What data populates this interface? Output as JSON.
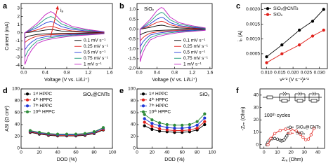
{
  "chart_data": [
    {
      "type": "line",
      "panel_label": "a",
      "annotation": "iₚ",
      "x_label": "Voltage (V vs. Li/Li⁺)",
      "y_label": "Current (mA)",
      "xlim": [
        -0.05,
        1.65
      ],
      "ylim": [
        -4.4,
        3.6
      ],
      "xticks": [
        {
          "value": 0,
          "label": "0.0"
        },
        0.4,
        0.8,
        1.2,
        1.6
      ],
      "yticks": [
        -4,
        -3,
        -2,
        -1,
        0,
        1,
        2,
        3
      ],
      "legend": "lower-right",
      "markers": "none",
      "x": [
        1.5,
        1.2,
        0.9,
        0.6,
        0.4,
        0.25,
        0.15,
        0.08,
        0.02,
        0.02,
        0.1,
        0.25,
        0.4,
        0.5,
        0.55,
        0.7,
        0.9,
        1.2,
        1.5
      ],
      "series": [
        {
          "name": "0.1 mV s⁻¹",
          "color": "#000000",
          "values": [
            -0.02,
            -0.04,
            -0.06,
            -0.1,
            -0.14,
            -0.2,
            -0.32,
            -0.44,
            -0.6,
            0,
            0.06,
            0.18,
            0.34,
            0.4,
            0.38,
            0.22,
            0.12,
            0.06,
            0.02
          ]
        },
        {
          "name": "0.25 mV s⁻¹",
          "color": "#e0201b",
          "values": [
            -0.04,
            -0.08,
            -0.12,
            -0.2,
            -0.28,
            -0.4,
            -0.64,
            -0.88,
            -1.2,
            0,
            0.12,
            0.36,
            0.68,
            0.8,
            0.76,
            0.44,
            0.24,
            0.12,
            0.04
          ]
        },
        {
          "name": "0.5 mV s⁻¹",
          "color": "#2038d8",
          "values": [
            -0.07,
            -0.14,
            -0.21,
            -0.35,
            -0.49,
            -0.7,
            -1.12,
            -1.54,
            -2.1,
            0,
            0.21,
            0.63,
            1.19,
            1.4,
            1.33,
            0.77,
            0.42,
            0.21,
            0.07
          ]
        },
        {
          "name": "0.75 mV s⁻¹",
          "color": "#1f9a7a",
          "values": [
            -0.1,
            -0.2,
            -0.3,
            -0.5,
            -0.7,
            -1.0,
            -1.6,
            -2.2,
            -3.0,
            0,
            0.3,
            0.9,
            1.7,
            2.0,
            1.9,
            1.1,
            0.6,
            0.3,
            0.1
          ]
        },
        {
          "name": "1 mV s⁻¹",
          "color": "#c21fc2",
          "values": [
            -0.13,
            -0.26,
            -0.39,
            -0.65,
            -0.91,
            -1.3,
            -2.08,
            -2.86,
            -3.9,
            0,
            0.39,
            1.17,
            2.21,
            2.6,
            2.47,
            1.43,
            0.78,
            0.39,
            0.13
          ]
        }
      ]
    },
    {
      "type": "line",
      "panel_label": "b",
      "annotation": "SiOₓ",
      "x_label": "Voltage (V vs. Li/Li⁺)",
      "xlim": [
        -0.05,
        1.65
      ],
      "ylim": [
        -2.0,
        1.3
      ],
      "xticks": [
        {
          "value": 0,
          "label": "0.0"
        },
        0.4,
        0.8,
        1.2,
        1.6
      ],
      "yticks": [
        {
          "value": -2,
          "label": "-2.0"
        },
        -1.5,
        {
          "value": -1,
          "label": "-1.0"
        },
        -0.5,
        {
          "value": 0,
          "label": "0.0"
        },
        0.5,
        {
          "value": 1,
          "label": "1.0"
        }
      ],
      "legend": "lower-right",
      "markers": "none",
      "x": [
        1.5,
        1.2,
        0.9,
        0.6,
        0.4,
        0.25,
        0.15,
        0.08,
        0.02,
        0.02,
        0.1,
        0.25,
        0.4,
        0.5,
        0.55,
        0.7,
        0.9,
        1.2,
        1.5
      ],
      "series": [
        {
          "name": "0.1 mV s⁻¹",
          "color": "#000000",
          "values": [
            -0.01,
            -0.02,
            -0.03,
            -0.05,
            -0.07,
            -0.1,
            -0.16,
            -0.22,
            -0.3,
            0,
            0.03,
            0.09,
            0.17,
            0.2,
            0.19,
            0.11,
            0.06,
            0.03,
            0.01
          ]
        },
        {
          "name": "0.25 mV s⁻¹",
          "color": "#e0201b",
          "values": [
            -0.02,
            -0.04,
            -0.06,
            -0.1,
            -0.14,
            -0.2,
            -0.32,
            -0.44,
            -0.6,
            0,
            0.06,
            0.18,
            0.34,
            0.4,
            0.38,
            0.22,
            0.12,
            0.06,
            0.02
          ]
        },
        {
          "name": "0.5 mV s⁻¹",
          "color": "#2038d8",
          "values": [
            -0.03,
            -0.06,
            -0.09,
            -0.15,
            -0.21,
            -0.3,
            -0.48,
            -0.66,
            -0.9,
            0,
            0.09,
            0.27,
            0.51,
            0.6,
            0.57,
            0.33,
            0.18,
            0.09,
            0.03
          ]
        },
        {
          "name": "0.75 mV s⁻¹",
          "color": "#1f9a7a",
          "values": [
            -0.04,
            -0.09,
            -0.13,
            -0.21,
            -0.3,
            -0.43,
            -0.68,
            -0.94,
            -1.28,
            0,
            0.13,
            0.38,
            0.72,
            0.85,
            0.81,
            0.47,
            0.26,
            0.13,
            0.04
          ]
        },
        {
          "name": "1 mV s⁻¹",
          "color": "#c21fc2",
          "values": [
            -0.06,
            -0.11,
            -0.17,
            -0.28,
            -0.39,
            -0.55,
            -0.88,
            -1.21,
            -1.65,
            0,
            0.17,
            0.5,
            0.94,
            1.1,
            1.05,
            0.61,
            0.33,
            0.17,
            0.06
          ]
        }
      ]
    },
    {
      "type": "scatter",
      "panel_label": "c",
      "x_label": "v¹ᐟ² (V s⁻¹)¹ᐟ²",
      "y_label": "iₚ (A)",
      "xlim": [
        0.008,
        0.033
      ],
      "ylim": [
        0,
        0.0022
      ],
      "xticks": [
        {
          "value": 0.01,
          "label": "0.010"
        },
        0.015,
        {
          "value": 0.02,
          "label": "0.020"
        },
        0.025,
        {
          "value": 0.03,
          "label": "0.030"
        }
      ],
      "yticks": [
        0.0005,
        {
          "value": 0.001,
          "label": "0.0010"
        },
        0.0015,
        {
          "value": 0.002,
          "label": "0.0020"
        }
      ],
      "legend": "upper-left",
      "markers": "filled",
      "x": [
        0.01,
        0.0158,
        0.0224,
        0.0274,
        0.0316
      ],
      "series": [
        {
          "name": "SiOₓ@CNTs",
          "color": "#000000",
          "values": [
            0.0004,
            0.0008,
            0.0013,
            0.0016,
            0.002
          ]
        },
        {
          "name": "SiOₓ",
          "color": "#e0201b",
          "values": [
            0.0002,
            0.0005,
            0.0008,
            0.0011,
            0.0013
          ]
        }
      ]
    },
    {
      "type": "line",
      "panel_label": "d",
      "annotation": "SiOₓ@CNTs",
      "x_label": "DOD (%)",
      "y_label": "ASI (Ω cm²)",
      "xlim": [
        0,
        100
      ],
      "ylim": [
        0,
        100
      ],
      "xticks": [
        0,
        20,
        40,
        60,
        80,
        100
      ],
      "yticks": [
        0,
        20,
        40,
        60,
        80,
        100
      ],
      "legend": "upper-left",
      "markers": "filled",
      "x": [
        10,
        20,
        30,
        40,
        50,
        60,
        70,
        80,
        90
      ],
      "series": [
        {
          "name": "1ˢᵗ HPPC",
          "color": "#000000",
          "values": [
            27,
            24,
            22,
            21,
            21,
            21,
            22,
            25,
            31
          ]
        },
        {
          "name": "4ᵗʰ HPPC",
          "color": "#e0201b",
          "values": [
            28,
            25,
            23,
            22,
            22,
            22,
            23,
            26,
            32
          ]
        },
        {
          "name": "7ᵗʰ HPPC",
          "color": "#2038d8",
          "values": [
            29,
            26,
            24,
            23,
            23,
            23,
            24,
            27,
            34
          ]
        },
        {
          "name": "10ᵗʰ HPPC",
          "color": "#2e8b3a",
          "values": [
            30,
            27,
            25,
            24,
            24,
            24,
            25,
            28,
            35
          ]
        }
      ]
    },
    {
      "type": "line",
      "panel_label": "e",
      "annotation": "SiOₓ",
      "x_label": "DOD (%)",
      "xlim": [
        0,
        100
      ],
      "ylim": [
        0,
        100
      ],
      "xticks": [
        0,
        20,
        40,
        60,
        80,
        100
      ],
      "yticks": [
        0,
        20,
        40,
        60,
        80,
        100
      ],
      "legend": "upper-left",
      "markers": "filled",
      "x": [
        10,
        20,
        30,
        40,
        50,
        60,
        70,
        80,
        90
      ],
      "series": [
        {
          "name": "1ˢᵗ HPPC",
          "color": "#000000",
          "values": [
            38,
            32,
            29,
            28,
            27,
            27,
            28,
            31,
            40
          ]
        },
        {
          "name": "4ᵗʰ HPPC",
          "color": "#e0201b",
          "values": [
            44,
            37,
            33,
            31,
            30,
            30,
            31,
            34,
            45
          ]
        },
        {
          "name": "7ᵗʰ HPPC",
          "color": "#2038d8",
          "values": [
            50,
            42,
            38,
            35,
            34,
            34,
            35,
            39,
            51
          ]
        },
        {
          "name": "10ᵗʰ HPPC",
          "color": "#2e8b3a",
          "values": [
            57,
            48,
            43,
            40,
            39,
            39,
            40,
            45,
            58
          ]
        }
      ]
    },
    {
      "type": "scatter",
      "panel_label": "f",
      "annotation": "100ᵗʰ cycles",
      "x_label": "Zᵣₑ (Ohm)",
      "y_label": "-Zᵢₘ (Ohm)",
      "xlim": [
        -3,
        45
      ],
      "ylim": [
        -3,
        45
      ],
      "xticks": [
        0,
        10,
        20,
        30,
        40
      ],
      "yticks": [
        0,
        10,
        20,
        30,
        40
      ],
      "legend": "center",
      "markers": "open",
      "series": [
        {
          "name": "SiOₓ@CNTs",
          "color": "#000000",
          "x": [
            2,
            3,
            4,
            6,
            8,
            10,
            12,
            13,
            14,
            15,
            16,
            17,
            18
          ],
          "values": [
            0,
            2,
            3.5,
            4.8,
            5,
            4.5,
            3.5,
            3,
            3.2,
            4,
            5.5,
            7,
            9
          ]
        },
        {
          "name": "SiOₓ",
          "color": "#e0201b",
          "x": [
            3,
            5,
            8,
            12,
            16,
            20,
            24,
            27,
            29,
            31,
            33,
            35,
            37
          ],
          "values": [
            0,
            5,
            9,
            11.5,
            12.5,
            12.5,
            11,
            8.5,
            6,
            4,
            4.5,
            8,
            13
          ]
        }
      ]
    }
  ]
}
